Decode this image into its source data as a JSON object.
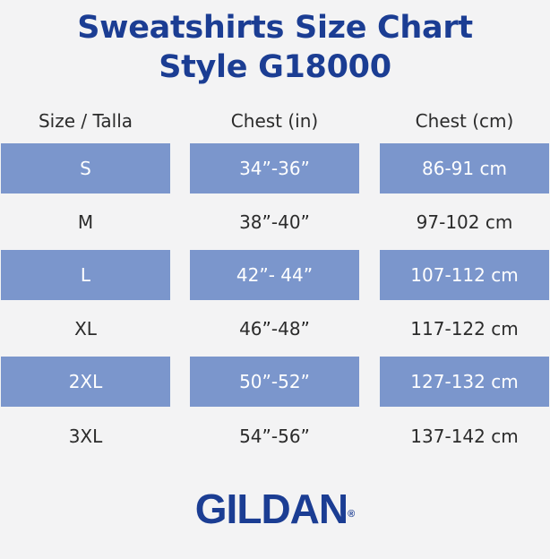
{
  "title": {
    "line1": "Sweatshirts Size Chart",
    "line2": "Style G18000"
  },
  "headers": [
    "Size / Talla",
    "Chest (in)",
    "Chest (cm)"
  ],
  "rows": [
    {
      "size": "S",
      "chest_in": "34”-36”",
      "chest_cm": "86-91 cm",
      "shaded": true
    },
    {
      "size": "M",
      "chest_in": "38”-40”",
      "chest_cm": "97-102 cm",
      "shaded": false
    },
    {
      "size": "L",
      "chest_in": "42”- 44”",
      "chest_cm": "107-112 cm",
      "shaded": true
    },
    {
      "size": "XL",
      "chest_in": "46”-48”",
      "chest_cm": "117-122 cm",
      "shaded": false
    },
    {
      "size": "2XL",
      "chest_in": "50”-52”",
      "chest_cm": "127-132 cm",
      "shaded": true
    },
    {
      "size": "3XL",
      "chest_in": "54”-56”",
      "chest_cm": "137-142 cm",
      "shaded": false
    }
  ],
  "logo": {
    "text": "GILDAN",
    "mark": "®"
  },
  "colors": {
    "brand_blue": "#1b3d93",
    "row_shade": "#7b96cc",
    "background": "#f3f3f4"
  }
}
